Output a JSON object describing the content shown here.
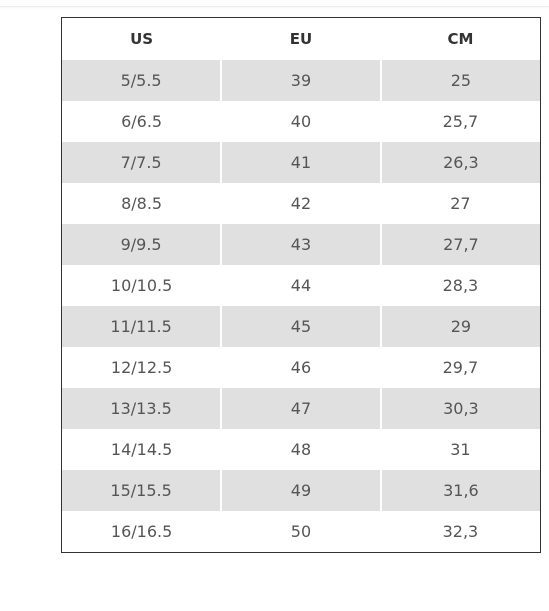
{
  "table": {
    "headers": [
      "US",
      "EU",
      "CM"
    ],
    "rows": [
      [
        "5/5.5",
        "39",
        "25"
      ],
      [
        "6/6.5",
        "40",
        "25,7"
      ],
      [
        "7/7.5",
        "41",
        "26,3"
      ],
      [
        "8/8.5",
        "42",
        "27"
      ],
      [
        "9/9.5",
        "43",
        "27,7"
      ],
      [
        "10/10.5",
        "44",
        "28,3"
      ],
      [
        "11/11.5",
        "45",
        "29"
      ],
      [
        "12/12.5",
        "46",
        "29,7"
      ],
      [
        "13/13.5",
        "47",
        "30,3"
      ],
      [
        "14/14.5",
        "48",
        "31"
      ],
      [
        "15/15.5",
        "49",
        "31,6"
      ],
      [
        "16/16.5",
        "50",
        "32,3"
      ]
    ]
  }
}
